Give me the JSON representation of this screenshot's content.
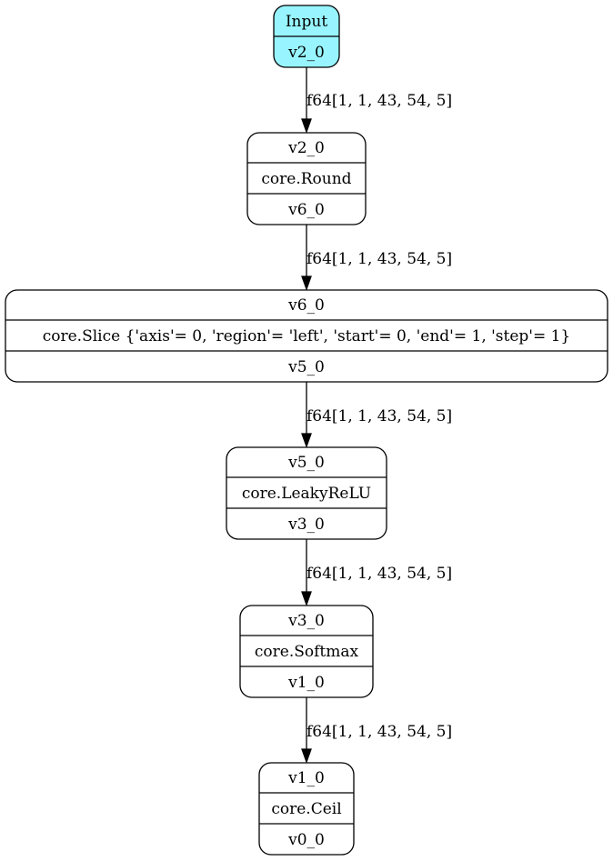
{
  "nodes": [
    {
      "rows": [
        "Input",
        "v2_0"
      ],
      "fill": "#98f5ff"
    },
    {
      "rows": [
        "v2_0",
        "core.Round",
        "v6_0"
      ]
    },
    {
      "rows": [
        "v6_0",
        "core.Slice {'axis'= 0, 'region'= 'left', 'start'= 0, 'end'= 1, 'step'= 1}",
        "v5_0"
      ]
    },
    {
      "rows": [
        "v5_0",
        "core.LeakyReLU",
        "v3_0"
      ]
    },
    {
      "rows": [
        "v3_0",
        "core.Softmax",
        "v1_0"
      ]
    },
    {
      "rows": [
        "v1_0",
        "core.Ceil",
        "v0_0"
      ]
    }
  ],
  "edges": [
    {
      "label": "f64[1, 1, 43, 54, 5]"
    },
    {
      "label": "f64[1, 1, 43, 54, 5]"
    },
    {
      "label": "f64[1, 1, 43, 54, 5]"
    },
    {
      "label": "f64[1, 1, 43, 54, 5]"
    },
    {
      "label": "f64[1, 1, 43, 54, 5]"
    }
  ]
}
